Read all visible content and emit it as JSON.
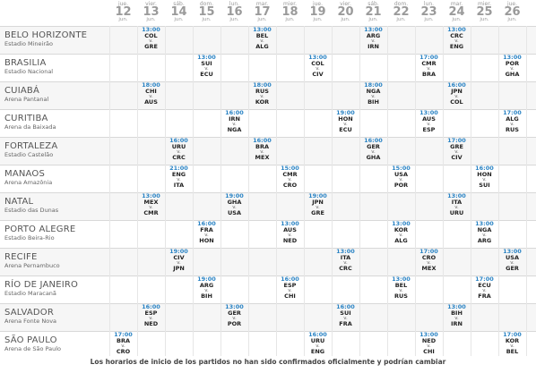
{
  "days": [
    {
      "weekday": "jue.",
      "day": "12",
      "month": "jun."
    },
    {
      "weekday": "vier.",
      "day": "13",
      "month": "jun."
    },
    {
      "weekday": "sáb.",
      "day": "14",
      "month": "jun."
    },
    {
      "weekday": "dom.",
      "day": "15",
      "month": "jun."
    },
    {
      "weekday": "lun.",
      "day": "16",
      "month": "jun."
    },
    {
      "weekday": "mar.",
      "day": "17",
      "month": "jun."
    },
    {
      "weekday": "mier.",
      "day": "18",
      "month": "jun."
    },
    {
      "weekday": "jue.",
      "day": "19",
      "month": "jun."
    },
    {
      "weekday": "vier.",
      "day": "20",
      "month": "jun."
    },
    {
      "weekday": "sáb.",
      "day": "21",
      "month": "jun."
    },
    {
      "weekday": "dom.",
      "day": "22",
      "month": "jun."
    },
    {
      "weekday": "lun.",
      "day": "23",
      "month": "jun."
    },
    {
      "weekday": "mar.",
      "day": "24",
      "month": "jun."
    },
    {
      "weekday": "mier.",
      "day": "25",
      "month": "jun."
    },
    {
      "weekday": "jue.",
      "day": "26",
      "month": "jun."
    }
  ],
  "vs_label": "v.",
  "venues": [
    {
      "city": "BELO HORIZONTE",
      "stadium": "Estadio Mineirão",
      "matches": [
        {
          "day": 1,
          "time": "13:00",
          "home": "COL",
          "away": "GRE"
        },
        {
          "day": 5,
          "time": "13:00",
          "home": "BEL",
          "away": "ALG"
        },
        {
          "day": 9,
          "time": "13:00",
          "home": "ARG",
          "away": "IRN"
        },
        {
          "day": 12,
          "time": "13:00",
          "home": "CRC",
          "away": "ENG"
        }
      ]
    },
    {
      "city": "BRASILIA",
      "stadium": "Estadio Nacional",
      "matches": [
        {
          "day": 3,
          "time": "13:00",
          "home": "SUI",
          "away": "ECU"
        },
        {
          "day": 7,
          "time": "13:00",
          "home": "COL",
          "away": "CIV"
        },
        {
          "day": 11,
          "time": "17:00",
          "home": "CMR",
          "away": "BRA"
        },
        {
          "day": 14,
          "time": "13:00",
          "home": "POR",
          "away": "GHA"
        }
      ]
    },
    {
      "city": "CUIABÁ",
      "stadium": "Arena Pantanal",
      "matches": [
        {
          "day": 1,
          "time": "18:00",
          "home": "CHI",
          "away": "AUS"
        },
        {
          "day": 5,
          "time": "18:00",
          "home": "RUS",
          "away": "KOR"
        },
        {
          "day": 9,
          "time": "18:00",
          "home": "NGA",
          "away": "BIH"
        },
        {
          "day": 12,
          "time": "16:00",
          "home": "JPN",
          "away": "COL"
        }
      ]
    },
    {
      "city": "CURITIBA",
      "stadium": "Arena da Baixada",
      "matches": [
        {
          "day": 4,
          "time": "16:00",
          "home": "IRN",
          "away": "NGA"
        },
        {
          "day": 8,
          "time": "19:00",
          "home": "HON",
          "away": "ECU"
        },
        {
          "day": 11,
          "time": "13:00",
          "home": "AUS",
          "away": "ESP"
        },
        {
          "day": 14,
          "time": "17:00",
          "home": "ALG",
          "away": "RUS"
        }
      ]
    },
    {
      "city": "FORTALEZA",
      "stadium": "Estadio Castelão",
      "matches": [
        {
          "day": 2,
          "time": "16:00",
          "home": "URU",
          "away": "CRC"
        },
        {
          "day": 5,
          "time": "16:00",
          "home": "BRA",
          "away": "MEX"
        },
        {
          "day": 9,
          "time": "16:00",
          "home": "GER",
          "away": "GHA"
        },
        {
          "day": 12,
          "time": "17:00",
          "home": "GRE",
          "away": "CIV"
        }
      ]
    },
    {
      "city": "MANAOS",
      "stadium": "Arena Amazônia",
      "matches": [
        {
          "day": 2,
          "time": "21:00",
          "home": "ENG",
          "away": "ITA"
        },
        {
          "day": 6,
          "time": "15:00",
          "home": "CMR",
          "away": "CRO"
        },
        {
          "day": 10,
          "time": "15:00",
          "home": "USA",
          "away": "POR"
        },
        {
          "day": 13,
          "time": "16:00",
          "home": "HON",
          "away": "SUI"
        }
      ]
    },
    {
      "city": "NATAL",
      "stadium": "Estadio das Dunas",
      "matches": [
        {
          "day": 1,
          "time": "13:00",
          "home": "MEX",
          "away": "CMR"
        },
        {
          "day": 4,
          "time": "19:00",
          "home": "GHA",
          "away": "USA"
        },
        {
          "day": 7,
          "time": "19:00",
          "home": "JPN",
          "away": "GRE"
        },
        {
          "day": 12,
          "time": "13:00",
          "home": "ITA",
          "away": "URU"
        }
      ]
    },
    {
      "city": "PORTO ALEGRE",
      "stadium": "Estadio Beira-Rio",
      "matches": [
        {
          "day": 3,
          "time": "16:00",
          "home": "FRA",
          "away": "HON"
        },
        {
          "day": 6,
          "time": "13:00",
          "home": "AUS",
          "away": "NED"
        },
        {
          "day": 10,
          "time": "13:00",
          "home": "KOR",
          "away": "ALG"
        },
        {
          "day": 13,
          "time": "13:00",
          "home": "NGA",
          "away": "ARG"
        }
      ]
    },
    {
      "city": "RECIFE",
      "stadium": "Arena Pernambuco",
      "matches": [
        {
          "day": 2,
          "time": "19:00",
          "home": "CIV",
          "away": "JPN"
        },
        {
          "day": 8,
          "time": "13:00",
          "home": "ITA",
          "away": "CRC"
        },
        {
          "day": 11,
          "time": "17:00",
          "home": "CRO",
          "away": "MEX"
        },
        {
          "day": 14,
          "time": "13:00",
          "home": "USA",
          "away": "GER"
        }
      ]
    },
    {
      "city": "RÍO DE JANEIRO",
      "stadium": "Estadio Maracanã",
      "matches": [
        {
          "day": 3,
          "time": "19:00",
          "home": "ARG",
          "away": "BIH"
        },
        {
          "day": 6,
          "time": "16:00",
          "home": "ESP",
          "away": "CHI"
        },
        {
          "day": 10,
          "time": "13:00",
          "home": "BEL",
          "away": "RUS"
        },
        {
          "day": 13,
          "time": "17:00",
          "home": "ECU",
          "away": "FRA"
        }
      ]
    },
    {
      "city": "SALVADOR",
      "stadium": "Arena Fonte Nova",
      "matches": [
        {
          "day": 1,
          "time": "16:00",
          "home": "ESP",
          "away": "NED"
        },
        {
          "day": 4,
          "time": "13:00",
          "home": "GER",
          "away": "POR"
        },
        {
          "day": 8,
          "time": "16:00",
          "home": "SUI",
          "away": "FRA"
        },
        {
          "day": 12,
          "time": "13:00",
          "home": "BIH",
          "away": "IRN"
        }
      ]
    },
    {
      "city": "SÃO PAULO",
      "stadium": "Arena de São Paulo",
      "matches": [
        {
          "day": 0,
          "time": "17:00",
          "home": "BRA",
          "away": "CRO"
        },
        {
          "day": 7,
          "time": "16:00",
          "home": "URU",
          "away": "ENG"
        },
        {
          "day": 11,
          "time": "13:00",
          "home": "NED",
          "away": "CHI"
        },
        {
          "day": 14,
          "time": "17:00",
          "home": "KOR",
          "away": "BEL"
        }
      ]
    }
  ],
  "footer": "Los horarios de inicio de los partidos no han sido confirmados oficialmente y podrían cambiar",
  "colors": {
    "time": "#2a83c4",
    "day_number": "#9a9a9a",
    "row_alt": "#f6f6f6"
  }
}
